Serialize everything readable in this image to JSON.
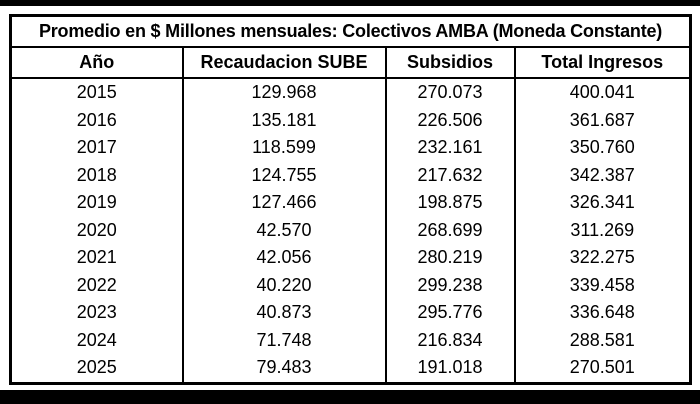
{
  "page": {
    "background_color": "#ffffff",
    "bar_color": "#000000",
    "text_color": "#000000",
    "border_color": "#000000"
  },
  "chart_data": {
    "type": "table",
    "title": "Promedio en $ Millones mensuales: Colectivos AMBA (Moneda Constante)",
    "columns": [
      "Año",
      "Recaudacion SUBE",
      "Subsidios",
      "Total Ingresos"
    ],
    "rows": [
      [
        "2015",
        "129.968",
        "270.073",
        "400.041"
      ],
      [
        "2016",
        "135.181",
        "226.506",
        "361.687"
      ],
      [
        "2017",
        "118.599",
        "232.161",
        "350.760"
      ],
      [
        "2018",
        "124.755",
        "217.632",
        "342.387"
      ],
      [
        "2019",
        "127.466",
        "198.875",
        "326.341"
      ],
      [
        "2020",
        "42.570",
        "268.699",
        "311.269"
      ],
      [
        "2021",
        "42.056",
        "280.219",
        "322.275"
      ],
      [
        "2022",
        "40.220",
        "299.238",
        "339.458"
      ],
      [
        "2023",
        "40.873",
        "295.776",
        "336.648"
      ],
      [
        "2024",
        "71.748",
        "216.834",
        "288.581"
      ],
      [
        "2025",
        "79.483",
        "191.018",
        "270.501"
      ]
    ],
    "notes": {
      "units": "$ Millones mensuales (Moneda Constante)",
      "decimal_style": "period as thousands separator"
    }
  }
}
